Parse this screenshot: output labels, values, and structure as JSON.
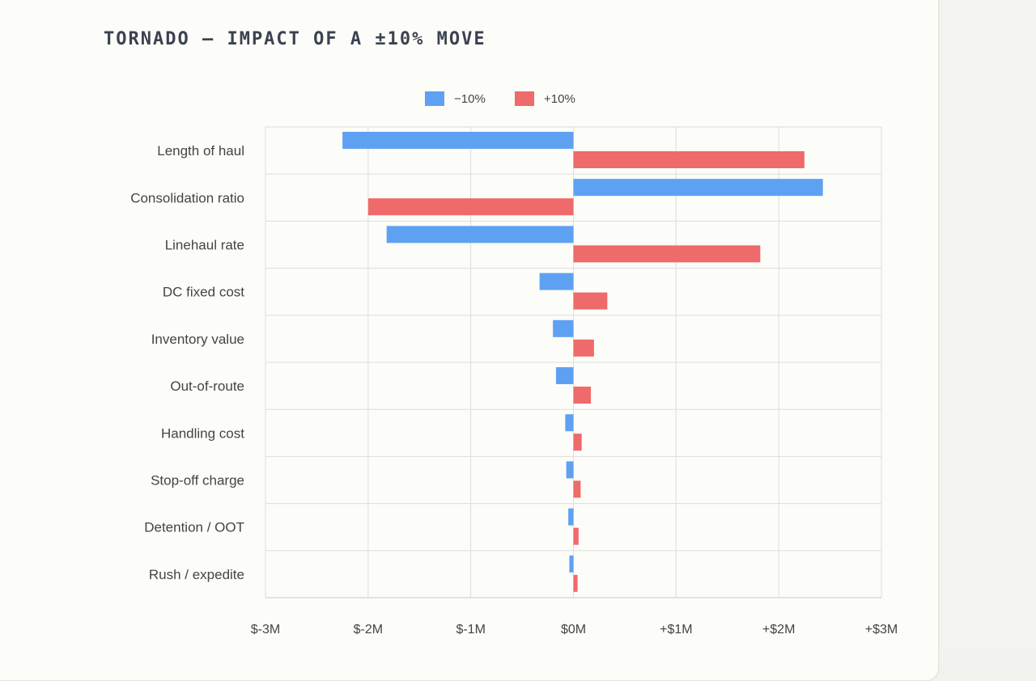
{
  "title": "TORNADO — IMPACT OF A ±10% MOVE",
  "colors": {
    "minus": "#5ea1f2",
    "plus": "#ef6a6a",
    "grid": "#dddddd",
    "text": "#444444"
  },
  "chart_data": {
    "type": "bar",
    "orientation": "horizontal",
    "title": "TORNADO — IMPACT OF A ±10% MOVE",
    "categories": [
      "Length of haul",
      "Consolidation ratio",
      "Linehaul rate",
      "DC fixed cost",
      "Inventory value",
      "Out-of-route",
      "Handling cost",
      "Stop-off charge",
      "Detention / OOT",
      "Rush / expedite"
    ],
    "series": [
      {
        "name": "−10%",
        "color": "#5ea1f2",
        "values": [
          -2.25,
          2.43,
          -1.82,
          -0.33,
          -0.2,
          -0.17,
          -0.08,
          -0.07,
          -0.05,
          -0.04
        ]
      },
      {
        "name": "+10%",
        "color": "#ef6a6a",
        "values": [
          2.25,
          -2.0,
          1.82,
          0.33,
          0.2,
          0.17,
          0.08,
          0.07,
          0.05,
          0.04
        ]
      }
    ],
    "xlim": [
      -3,
      3
    ],
    "xticks": [
      -3,
      -2,
      -1,
      0,
      1,
      2,
      3
    ],
    "xtick_labels": [
      "$-3M",
      "$-2M",
      "$-1M",
      "$0M",
      "+$1M",
      "+$2M",
      "+$3M"
    ],
    "grid": true,
    "legend_position": "top-center"
  }
}
